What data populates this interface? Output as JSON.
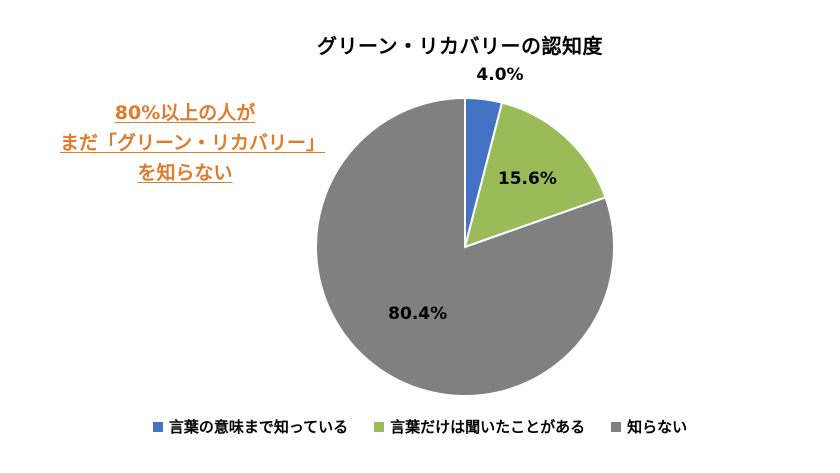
{
  "callout": {
    "line1": "80%以上の人が",
    "line2": "まだ「グリーン・リカバリー」",
    "line3": "を知らない"
  },
  "chart_data": {
    "type": "pie",
    "title": "グリーン・リカバリーの認知度",
    "start_angle_deg": 0,
    "direction": "clockwise",
    "slices": [
      {
        "label": "言葉の意味まで知っている",
        "value": 4.0,
        "display": "4.0%",
        "color": "#4472C4"
      },
      {
        "label": "言葉だけは聞いたことがある",
        "value": 15.6,
        "display": "15.6%",
        "color": "#9BBB59"
      },
      {
        "label": "知らない",
        "value": 80.4,
        "display": "80.4%",
        "color": "#808080"
      }
    ],
    "legend_position": "bottom"
  }
}
